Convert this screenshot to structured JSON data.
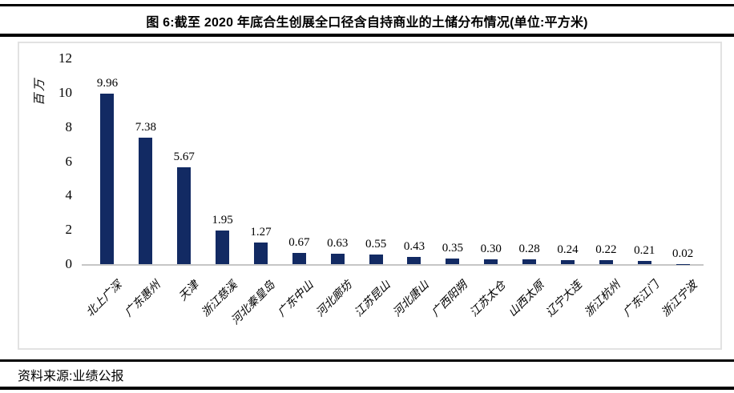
{
  "page": {
    "title": "图 6:截至 2020 年底合生创展全口径含自持商业的土储分布情况(单位:平方米)",
    "source": "资料来源:业绩公报"
  },
  "chart_data": {
    "type": "bar",
    "title": "截至 2020 年底合生创展全口径含自持商业的土储分布情况",
    "unit": "平方米",
    "ylabel": "百万",
    "xlabel": "",
    "categories": [
      "北上广深",
      "广东惠州",
      "天津",
      "浙江慈溪",
      "河北秦皇岛",
      "广东中山",
      "河北廊坊",
      "江苏昆山",
      "河北唐山",
      "广西阳朔",
      "江苏太仓",
      "山西太原",
      "辽宁大连",
      "浙江杭州",
      "广东江门",
      "浙江宁波"
    ],
    "values": [
      9.96,
      7.38,
      5.67,
      1.95,
      1.27,
      0.67,
      0.63,
      0.55,
      0.43,
      0.35,
      0.3,
      0.28,
      0.24,
      0.22,
      0.21,
      0.02
    ],
    "value_labels": [
      "9.96",
      "7.38",
      "5.67",
      "1.95",
      "1.27",
      "0.67",
      "0.63",
      "0.55",
      "0.43",
      "0.35",
      "0.30",
      "0.28",
      "0.24",
      "0.22",
      "0.21",
      "0.02"
    ],
    "y_ticks": [
      0,
      2,
      4,
      6,
      8,
      10,
      12
    ],
    "ylim": [
      0,
      12
    ],
    "grid": false,
    "legend": null,
    "bar_color": "#122a63",
    "axis_line_color": "#c6c6c6"
  }
}
